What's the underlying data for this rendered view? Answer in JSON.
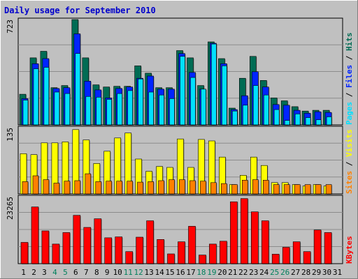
{
  "title": "Daily usage for September 2010",
  "colors": {
    "background": "#c0c0c0",
    "hits": "#006c54",
    "files": "#0024ff",
    "pages": "#00e0ff",
    "visits": "#ffff00",
    "sites": "#ff8000",
    "kbytes": "#ff0000",
    "weekday": "#000000",
    "weekend": "#00805c"
  },
  "chart_data": [
    {
      "type": "bar",
      "name": "hits-files-pages",
      "side_label": [
        "Pages",
        "Files",
        "Hits"
      ],
      "ymax_label": "723",
      "ylim": [
        0,
        723
      ],
      "categories": [
        "1",
        "2",
        "3",
        "4",
        "5",
        "6",
        "7",
        "8",
        "9",
        "10",
        "11",
        "12",
        "13",
        "14",
        "15",
        "16",
        "17",
        "18",
        "19",
        "20",
        "21",
        "22",
        "23",
        "24",
        "25",
        "26",
        "27",
        "28",
        "29",
        "30",
        "31"
      ],
      "series": [
        {
          "name": "Hits",
          "values": [
            210,
            460,
            505,
            255,
            270,
            723,
            460,
            275,
            260,
            265,
            265,
            405,
            355,
            255,
            255,
            510,
            460,
            270,
            570,
            455,
            115,
            320,
            470,
            305,
            185,
            165,
            125,
            95,
            100,
            100,
            0
          ]
        },
        {
          "name": "Files",
          "values": [
            180,
            420,
            455,
            250,
            255,
            625,
            300,
            240,
            185,
            250,
            260,
            320,
            335,
            245,
            245,
            490,
            360,
            245,
            560,
            420,
            105,
            200,
            365,
            260,
            140,
            135,
            100,
            80,
            90,
            85,
            0
          ]
        },
        {
          "name": "Pages",
          "values": [
            170,
            385,
            395,
            225,
            215,
            490,
            195,
            190,
            175,
            215,
            235,
            315,
            225,
            205,
            180,
            470,
            325,
            245,
            555,
            405,
            95,
            135,
            270,
            205,
            105,
            30,
            75,
            50,
            35,
            55,
            0
          ]
        }
      ]
    },
    {
      "type": "bar",
      "name": "visits-sites",
      "side_label": [
        "Sites",
        "Visits"
      ],
      "ymax_label": "135",
      "ylim": [
        0,
        135
      ],
      "categories": [
        "1",
        "2",
        "3",
        "4",
        "5",
        "6",
        "7",
        "8",
        "9",
        "10",
        "11",
        "12",
        "13",
        "14",
        "15",
        "16",
        "17",
        "18",
        "19",
        "20",
        "21",
        "22",
        "23",
        "24",
        "25",
        "26",
        "27",
        "28",
        "29",
        "30",
        "31"
      ],
      "series": [
        {
          "name": "Visits",
          "values": [
            82,
            80,
            104,
            104,
            106,
            131,
            110,
            62,
            87,
            114,
            124,
            71,
            46,
            56,
            54,
            112,
            54,
            111,
            108,
            75,
            19,
            38,
            75,
            58,
            23,
            23,
            19,
            16,
            19,
            16,
            0
          ]
        },
        {
          "name": "Sites",
          "values": [
            25,
            37,
            29,
            22,
            26,
            27,
            41,
            25,
            26,
            26,
            26,
            24,
            25,
            27,
            29,
            29,
            27,
            26,
            23,
            21,
            19,
            28,
            29,
            28,
            19,
            19,
            19,
            19,
            19,
            19,
            0
          ]
        }
      ]
    },
    {
      "type": "bar",
      "name": "kbytes",
      "side_label": [
        "KBytes"
      ],
      "ymax_label": "23265",
      "ylim": [
        0,
        23265
      ],
      "categories": [
        "1",
        "2",
        "3",
        "4",
        "5",
        "6",
        "7",
        "8",
        "9",
        "10",
        "11",
        "12",
        "13",
        "14",
        "15",
        "16",
        "17",
        "18",
        "19",
        "20",
        "21",
        "22",
        "23",
        "24",
        "25",
        "26",
        "27",
        "28",
        "29",
        "30",
        "31"
      ],
      "series": [
        {
          "name": "KBytes",
          "values": [
            7400,
            19700,
            11400,
            6800,
            10800,
            16800,
            12600,
            15600,
            9000,
            9300,
            4200,
            9200,
            14900,
            8400,
            3400,
            7600,
            13000,
            3000,
            6800,
            7800,
            21500,
            22600,
            18000,
            14900,
            3300,
            5700,
            7600,
            4200,
            11700,
            10800,
            0
          ]
        }
      ]
    }
  ]
}
